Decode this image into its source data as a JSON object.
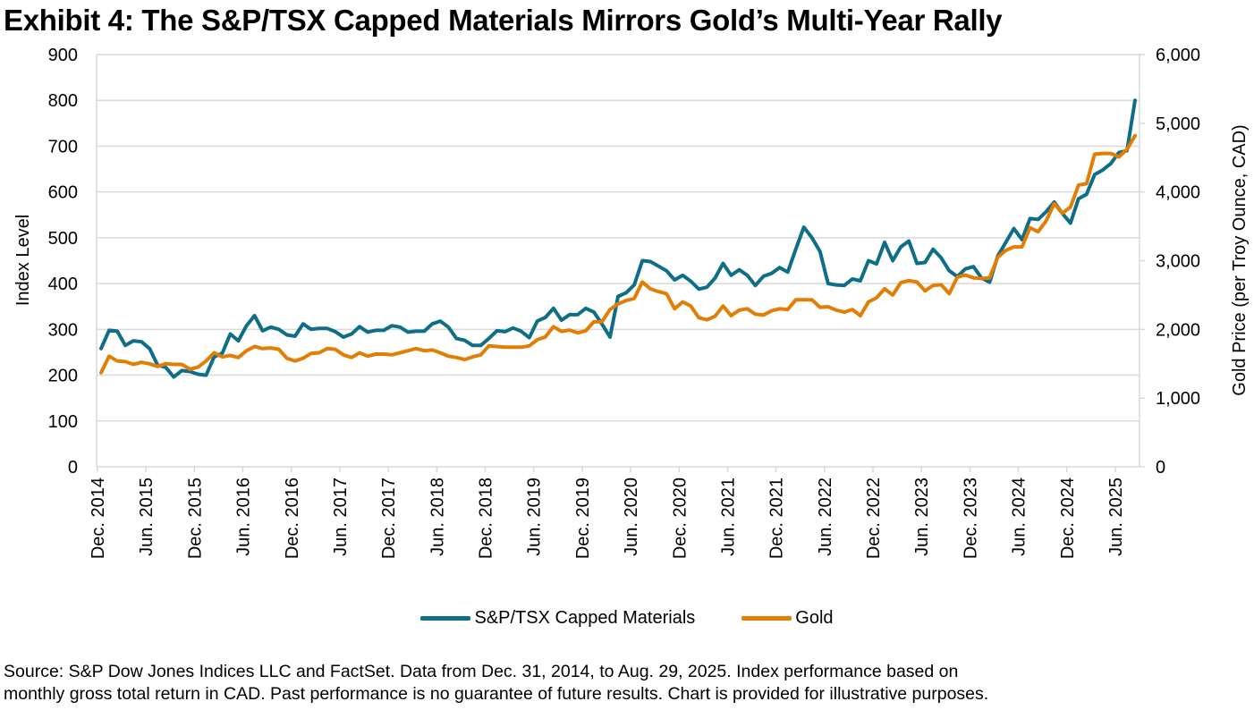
{
  "title": "Exhibit 4: The S&P/TSX Capped Materials Mirrors Gold’s Multi-Year Rally",
  "legend": [
    {
      "label": "S&P/TSX Capped Materials",
      "color": "#0E6E86"
    },
    {
      "label": "Gold",
      "color": "#E07E05"
    }
  ],
  "footer": {
    "line1": "Source: S&P Dow Jones Indices LLC and FactSet. Data from Dec. 31, 2014, to Aug. 29, 2025. Index performance based on",
    "line2": "monthly gross total return in CAD. Past performance is no guarantee of future results. Chart is provided for illustrative purposes."
  },
  "chart_data": {
    "type": "line",
    "title": "Exhibit 4: The S&P/TSX Capped Materials Mirrors Gold’s Multi-Year Rally",
    "xlabel": "",
    "ylabel": "Index Level",
    "y2label": "Gold Price (per Troy Ounce, CAD)",
    "ylim": [
      0,
      900
    ],
    "y2lim": [
      0,
      6000
    ],
    "yticks": [
      "0",
      "100",
      "200",
      "300",
      "400",
      "500",
      "600",
      "700",
      "800",
      "900"
    ],
    "y2ticks": [
      "0",
      "1,000",
      "2,000",
      "3,000",
      "4,000",
      "5,000",
      "6,000"
    ],
    "grid": true,
    "legend_position": "bottom",
    "x_start": "Dec. 2014",
    "x_end": "Aug. 2025",
    "frequency": "monthly",
    "xticks": [
      "Dec. 2014",
      "Jun. 2015",
      "Dec. 2015",
      "Jun. 2016",
      "Dec. 2016",
      "Jun. 2017",
      "Dec. 2017",
      "Jun. 2018",
      "Dec. 2018",
      "Jun. 2019",
      "Dec. 2019",
      "Jun. 2020",
      "Dec. 2020",
      "Jun. 2021",
      "Dec. 2021",
      "Jun. 2022",
      "Dec. 2022",
      "Jun. 2023",
      "Dec. 2023",
      "Jun. 2024",
      "Dec. 2024",
      "Jun. 2025"
    ],
    "series": [
      {
        "name": "S&P/TSX Capped Materials",
        "axis": "left",
        "color": "#0E6E86",
        "values": [
          258,
          298,
          296,
          265,
          275,
          273,
          258,
          222,
          217,
          196,
          210,
          208,
          202,
          200,
          240,
          248,
          290,
          275,
          308,
          330,
          297,
          305,
          300,
          288,
          285,
          312,
          300,
          302,
          302,
          295,
          283,
          290,
          306,
          294,
          298,
          298,
          308,
          305,
          294,
          296,
          296,
          312,
          318,
          305,
          280,
          276,
          265,
          265,
          280,
          297,
          295,
          303,
          296,
          282,
          318,
          326,
          346,
          320,
          332,
          332,
          346,
          338,
          312,
          283,
          372,
          380,
          397,
          450,
          448,
          438,
          428,
          408,
          418,
          405,
          388,
          392,
          412,
          444,
          418,
          430,
          418,
          396,
          416,
          422,
          435,
          425,
          475,
          523,
          500,
          470,
          400,
          397,
          396,
          410,
          406,
          450,
          443,
          490,
          450,
          480,
          493,
          444,
          446,
          475,
          456,
          428,
          415,
          432,
          437,
          412,
          403,
          460,
          490,
          520,
          496,
          542,
          540,
          557,
          578,
          553,
          532,
          585,
          595,
          638,
          648,
          662,
          686,
          690,
          800
        ]
      },
      {
        "name": "Gold",
        "axis": "right",
        "color": "#E07E05",
        "values": [
          1370,
          1610,
          1540,
          1530,
          1490,
          1520,
          1500,
          1460,
          1500,
          1490,
          1490,
          1420,
          1450,
          1540,
          1660,
          1600,
          1620,
          1590,
          1690,
          1750,
          1720,
          1730,
          1710,
          1580,
          1540,
          1580,
          1650,
          1660,
          1720,
          1710,
          1630,
          1590,
          1660,
          1610,
          1640,
          1640,
          1630,
          1660,
          1690,
          1720,
          1690,
          1700,
          1660,
          1610,
          1590,
          1560,
          1600,
          1630,
          1760,
          1750,
          1740,
          1740,
          1740,
          1760,
          1850,
          1890,
          2040,
          1970,
          1990,
          1950,
          1980,
          2110,
          2110,
          2290,
          2370,
          2420,
          2450,
          2690,
          2590,
          2550,
          2520,
          2300,
          2400,
          2340,
          2170,
          2140,
          2190,
          2340,
          2200,
          2280,
          2300,
          2220,
          2210,
          2270,
          2300,
          2290,
          2430,
          2430,
          2430,
          2320,
          2330,
          2280,
          2250,
          2290,
          2200,
          2400,
          2460,
          2590,
          2500,
          2680,
          2710,
          2690,
          2560,
          2640,
          2650,
          2520,
          2760,
          2790,
          2750,
          2740,
          2750,
          3050,
          3150,
          3200,
          3200,
          3480,
          3420,
          3580,
          3830,
          3690,
          3780,
          4100,
          4120,
          4550,
          4560,
          4560,
          4510,
          4620,
          4820
        ]
      }
    ]
  }
}
